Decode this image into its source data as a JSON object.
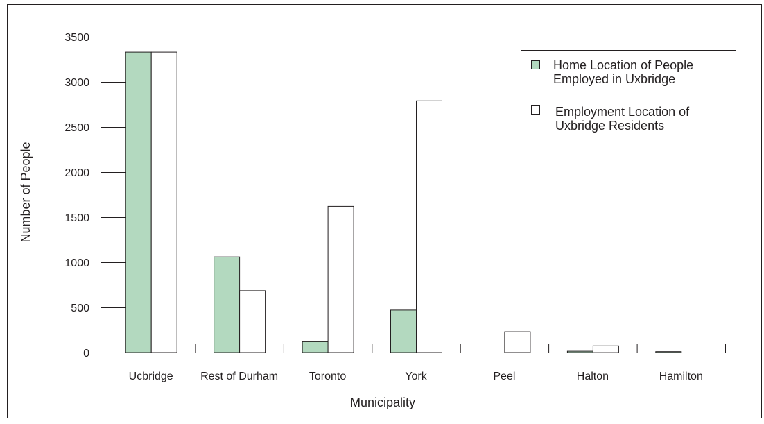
{
  "chart_data": {
    "type": "bar",
    "title": "",
    "xlabel": "Municipality",
    "ylabel": "Number of People",
    "categories": [
      "Ucbridge",
      "Rest of Durham",
      "Toronto",
      "York",
      "Peel",
      "Halton",
      "Hamilton"
    ],
    "series": [
      {
        "name": "Home Location of People Employed in Uxbridge",
        "name_lines": [
          "Home Location of People",
          "Employed in Uxbridge"
        ],
        "values": [
          3330,
          1060,
          120,
          470,
          0,
          15,
          10
        ],
        "fill": "#b3d9bf"
      },
      {
        "name": "Employment Location of Uxbridge Residents",
        "name_lines": [
          "Employment Location of",
          "Uxbridge Residents"
        ],
        "values": [
          3330,
          685,
          1620,
          2790,
          230,
          75,
          0
        ],
        "fill": "#ffffff"
      }
    ],
    "ylim": [
      0,
      3500
    ],
    "yticks": [
      0,
      500,
      1000,
      1500,
      2000,
      2500,
      3000,
      3500
    ],
    "grid": false,
    "legend_position": "top-right"
  },
  "colors": {
    "stroke": "#231f20",
    "background": "#ffffff"
  }
}
